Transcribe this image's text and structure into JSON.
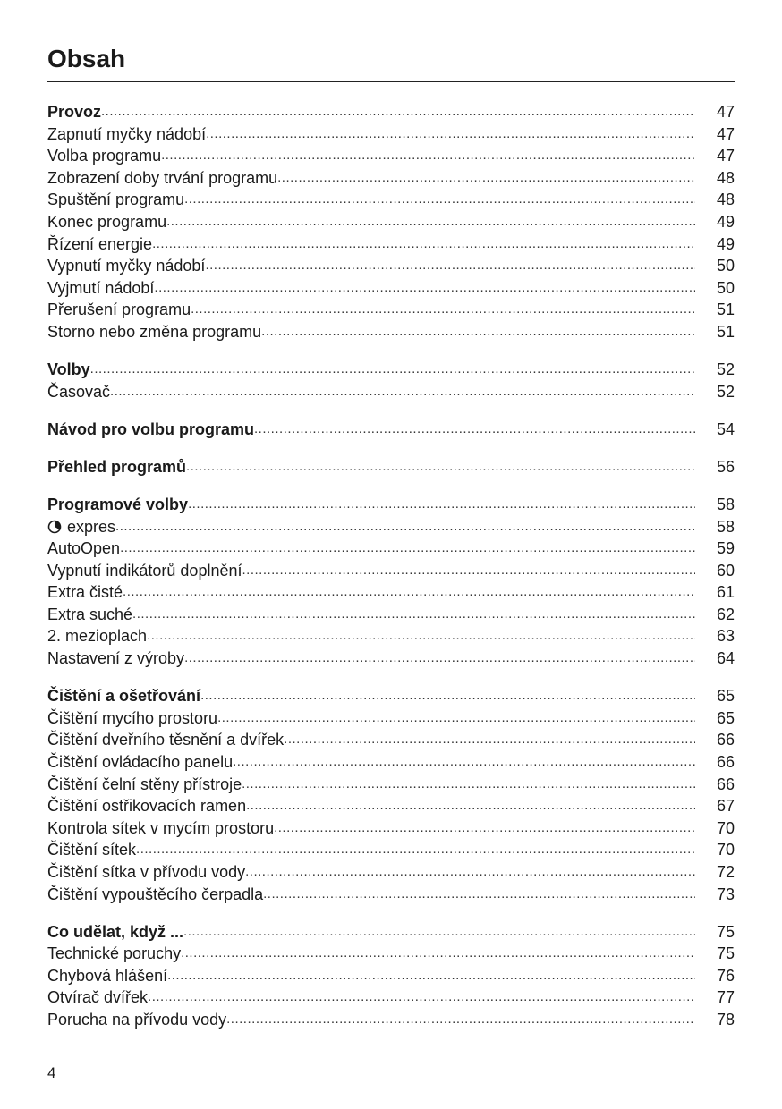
{
  "title": "Obsah",
  "page_number": "4",
  "sections": [
    {
      "items": [
        {
          "label": "Provoz",
          "page": "47",
          "bold": true
        },
        {
          "label": "Zapnutí myčky nádobí",
          "page": "47"
        },
        {
          "label": "Volba programu",
          "page": "47"
        },
        {
          "label": "Zobrazení doby trvání programu",
          "page": "48"
        },
        {
          "label": "Spuštění programu",
          "page": "48"
        },
        {
          "label": "Konec programu",
          "page": "49"
        },
        {
          "label": "Řízení energie",
          "page": "49"
        },
        {
          "label": "Vypnutí myčky nádobí",
          "page": "50"
        },
        {
          "label": "Vyjmutí nádobí",
          "page": "50"
        },
        {
          "label": "Přerušení programu",
          "page": "51"
        },
        {
          "label": "Storno nebo změna programu",
          "page": "51"
        }
      ]
    },
    {
      "items": [
        {
          "label": "Volby",
          "page": "52",
          "bold": true
        },
        {
          "label": "Časovač",
          "page": "52"
        }
      ]
    },
    {
      "items": [
        {
          "label": "Návod pro volbu programu",
          "page": "54",
          "bold": true
        }
      ]
    },
    {
      "items": [
        {
          "label": "Přehled programů",
          "page": "56",
          "bold": true
        }
      ]
    },
    {
      "items": [
        {
          "label": "Programové volby",
          "page": "58",
          "bold": true
        },
        {
          "label": "expres",
          "page": "58",
          "icon": "timer-icon"
        },
        {
          "label": "AutoOpen",
          "page": "59"
        },
        {
          "label": "Vypnutí indikátorů doplnění",
          "page": "60"
        },
        {
          "label": "Extra čisté",
          "page": "61"
        },
        {
          "label": "Extra suché",
          "page": "62"
        },
        {
          "label": "2. mezioplach",
          "page": "63"
        },
        {
          "label": "Nastavení z výroby",
          "page": "64"
        }
      ]
    },
    {
      "items": [
        {
          "label": "Čištění a ošetřování",
          "page": "65",
          "bold": true
        },
        {
          "label": "Čištění mycího prostoru",
          "page": "65"
        },
        {
          "label": "Čištění dveřního těsnění a dvířek",
          "page": "66"
        },
        {
          "label": "Čištění ovládacího panelu",
          "page": "66"
        },
        {
          "label": "Čištění čelní stěny přístroje",
          "page": "66"
        },
        {
          "label": "Čištění ostřikovacích ramen",
          "page": "67"
        },
        {
          "label": "Kontrola sítek v mycím prostoru",
          "page": "70"
        },
        {
          "label": "Čištění sítek",
          "page": "70"
        },
        {
          "label": "Čištění sítka v přívodu vody",
          "page": "72"
        },
        {
          "label": "Čištění vypouštěcího čerpadla",
          "page": "73"
        }
      ]
    },
    {
      "items": [
        {
          "label": "Co udělat, když ...",
          "page": "75",
          "bold": true
        },
        {
          "label": "Technické poruchy",
          "page": "75"
        },
        {
          "label": "Chybová hlášení",
          "page": "76"
        },
        {
          "label": "Otvírač dvířek",
          "page": "77"
        },
        {
          "label": "Porucha na přívodu vody",
          "page": "78"
        }
      ]
    }
  ]
}
